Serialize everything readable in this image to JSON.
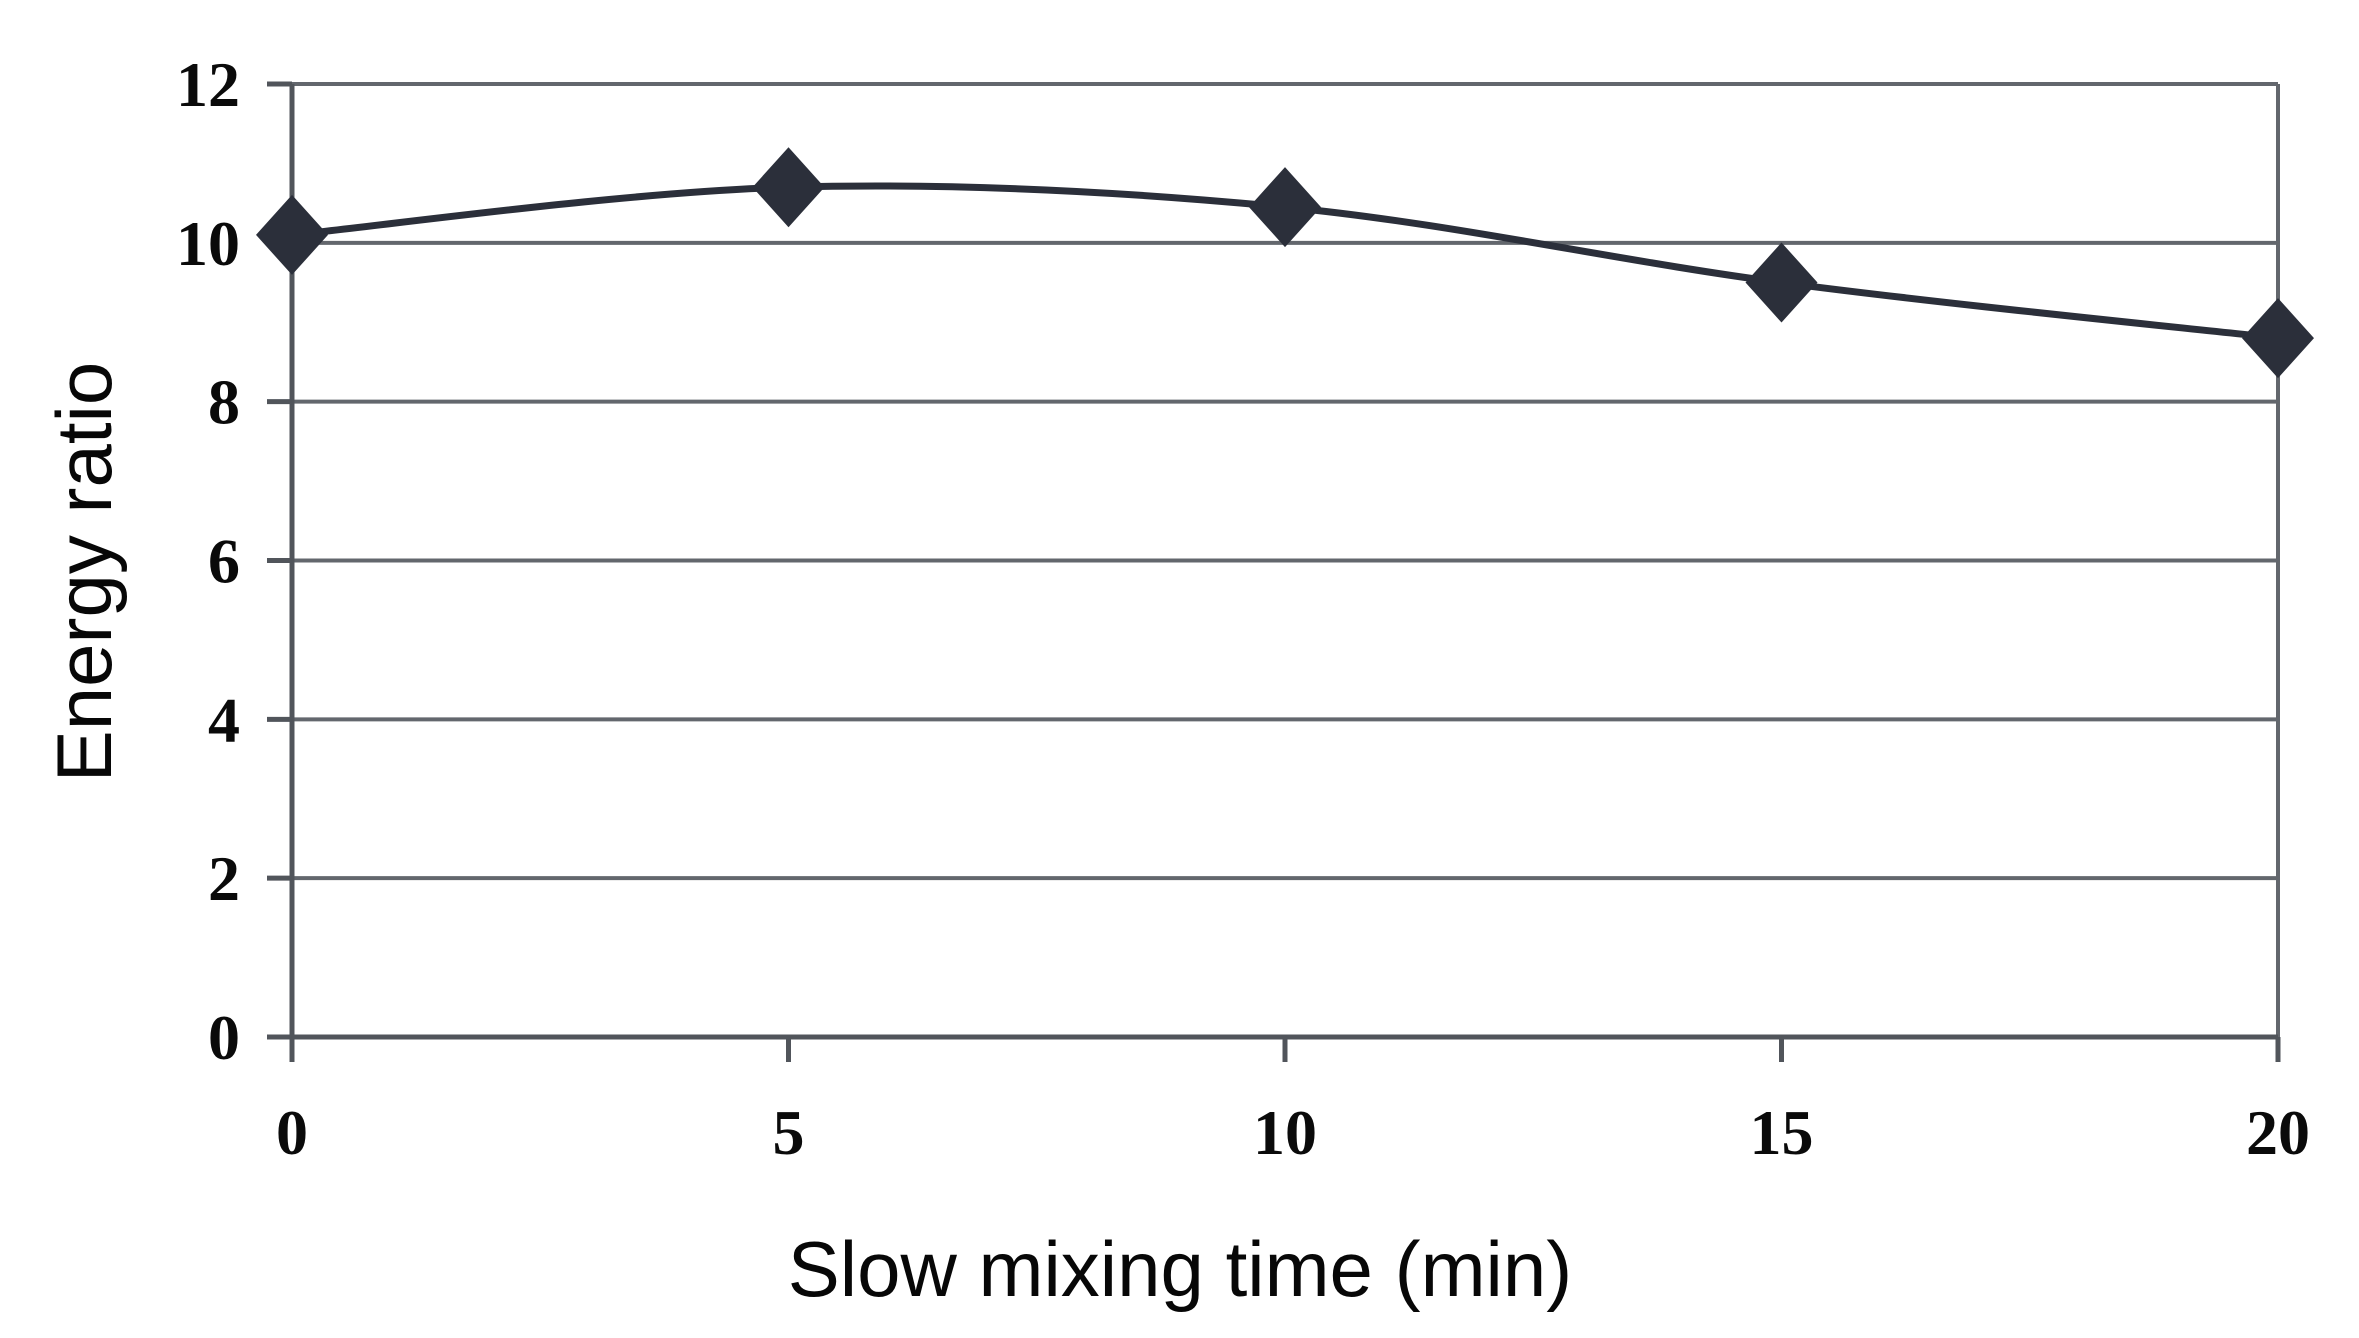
{
  "figure": {
    "background": "#ffffff"
  },
  "chart_data": {
    "type": "line",
    "title": "",
    "xlabel": "Slow mixing time (min)",
    "ylabel": "Energy ratio",
    "x": [
      0,
      5,
      10,
      15,
      20
    ],
    "series": [
      {
        "name": "Energy ratio",
        "values": [
          10.1,
          10.7,
          10.45,
          9.5,
          8.8
        ]
      }
    ],
    "xlim": [
      0,
      20
    ],
    "ylim": [
      0,
      12
    ],
    "xticks": [
      0,
      5,
      10,
      15,
      20
    ],
    "yticks": [
      0,
      2,
      4,
      6,
      8,
      10,
      12
    ],
    "grid": "horizontal-only",
    "legend": "none",
    "line_style": "smooth",
    "marker": "diamond",
    "colors": {
      "line": "#2b2f3a",
      "marker": "#2b2f3a",
      "gridline": "#63676d",
      "axis": "#51555b",
      "text": "#0a0a0a"
    }
  }
}
